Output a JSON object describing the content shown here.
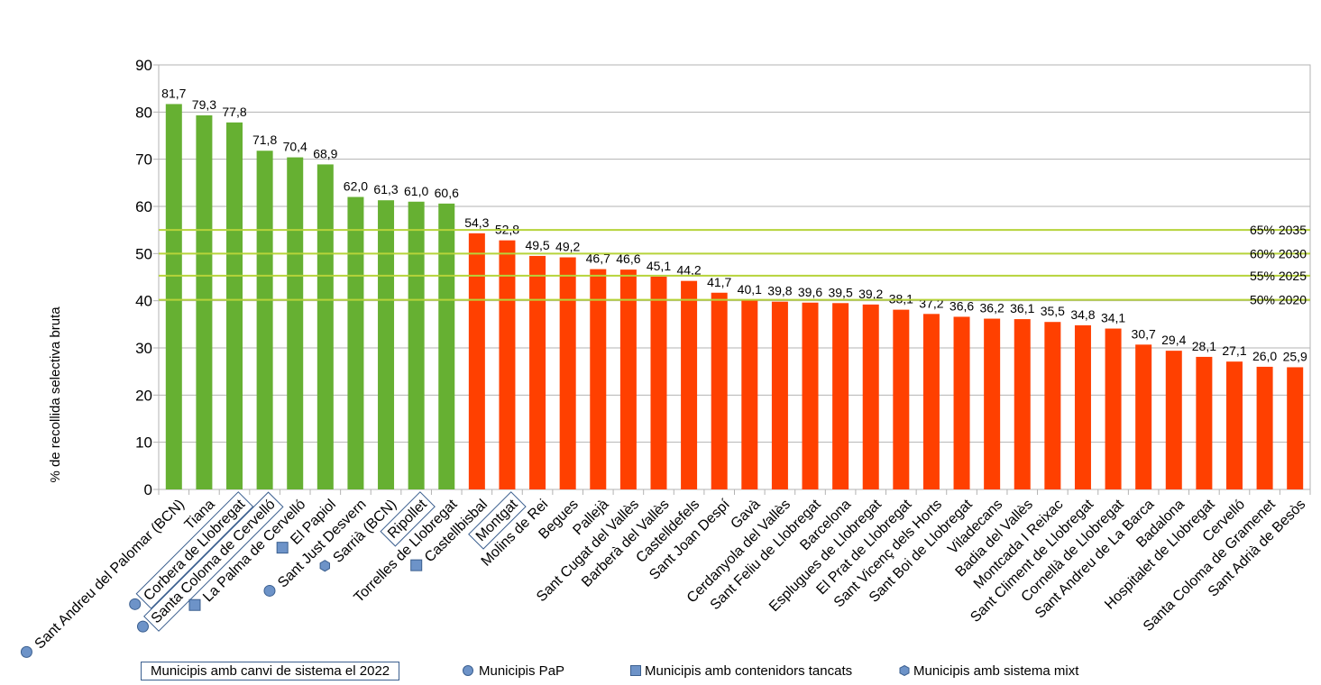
{
  "chart_data": {
    "type": "bar",
    "ylabel": "% de recollida selectiva bruta",
    "ylim": [
      0,
      90
    ],
    "yticks": [
      "0",
      "10",
      "20",
      "30",
      "40",
      "50",
      "60",
      "70",
      "80",
      "90"
    ],
    "grid": true,
    "categories": [
      "Sant Andreu del Palomar (BCN)",
      "Tiana",
      "Corbera de Llobregat",
      "Santa Coloma de Cervelló",
      "La Palma de Cervelló",
      "El Papiol",
      "Sant Just Desvern",
      "Sarrià (BCN)",
      "Ripollet",
      "Torrelles de Llobregat",
      "Castellbisbal",
      "Montgat",
      "Molins de Rei",
      "Begues",
      "Pallejà",
      "Sant Cugat del Vallès",
      "Barberà del Vallès",
      "Castelldefels",
      "Sant Joan Despí",
      "Gavà",
      "Cerdanyola del Vallès",
      "Sant Feliu de Llobregat",
      "Barcelona",
      "Esplugues de Llobregat",
      "El Prat de Llobregat",
      "Sant Vicenç dels Horts",
      "Sant Boi de Llobregat",
      "Viladecans",
      "Badia del Vallès",
      "Montcada I Reixac",
      "Sant Climent de Llobregat",
      "Cornellà de Llobregat",
      "Sant Andreu de La Barca",
      "Badalona",
      "Hospitalet de Llobregat",
      "Cervelló",
      "Santa Coloma de Gramenet",
      "Sant Adrià de Besòs"
    ],
    "values": [
      81.7,
      79.3,
      77.8,
      71.8,
      70.4,
      68.9,
      62.0,
      61.3,
      61.0,
      60.6,
      54.3,
      52.8,
      49.5,
      49.2,
      46.7,
      46.6,
      45.1,
      44.2,
      41.7,
      40.1,
      39.8,
      39.6,
      39.5,
      39.2,
      38.1,
      37.2,
      36.6,
      36.2,
      36.1,
      35.5,
      34.8,
      34.1,
      30.7,
      29.4,
      28.1,
      27.1,
      26.0,
      25.9
    ],
    "value_labels": [
      "81,7",
      "79,3",
      "77,8",
      "71,8",
      "70,4",
      "68,9",
      "62,0",
      "61,3",
      "61,0",
      "60,6",
      "54,3",
      "52,8",
      "49,5",
      "49,2",
      "46,7",
      "46,6",
      "45,1",
      "44,2",
      "41,7",
      "40,1",
      "39,8",
      "39,6",
      "39,5",
      "39,2",
      "38,1",
      "37,2",
      "36,6",
      "36,2",
      "36,1",
      "35,5",
      "34,8",
      "34,1",
      "30,7",
      "29,4",
      "28,1",
      "27,1",
      "26,0",
      "25,9"
    ],
    "bar_colors": {
      "green": "#66b032",
      "red": "#ff4000"
    },
    "green_count": 10,
    "reference_lines": [
      {
        "value": 55,
        "label": "65% 2035"
      },
      {
        "value": 50,
        "label": "60% 2030"
      },
      {
        "value": 45.3,
        "label": "55% 2025"
      },
      {
        "value": 40.2,
        "label": "50% 2020"
      }
    ],
    "reference_line_color": "#b6d33a",
    "boxed_categories": [
      2,
      3,
      8,
      11
    ],
    "markers": [
      {
        "category": 0,
        "shape": "circle"
      },
      {
        "category": 2,
        "shape": "circle"
      },
      {
        "category": 3,
        "shape": "circle"
      },
      {
        "category": 4,
        "shape": "square"
      },
      {
        "category": 5,
        "shape": "square"
      },
      {
        "category": 6,
        "shape": "circle"
      },
      {
        "category": 7,
        "shape": "hexagon"
      },
      {
        "category": 10,
        "shape": "square"
      }
    ],
    "marker_color": "#6d93c8",
    "legend": [
      {
        "label": "Municipis amb canvi de sistema el 2022",
        "shape": "box"
      },
      {
        "label": "Municipis PaP",
        "shape": "circle"
      },
      {
        "label": "Municipis amb contenidors tancats",
        "shape": "square"
      },
      {
        "label": "Municipis amb sistema mixt",
        "shape": "hexagon"
      }
    ]
  }
}
